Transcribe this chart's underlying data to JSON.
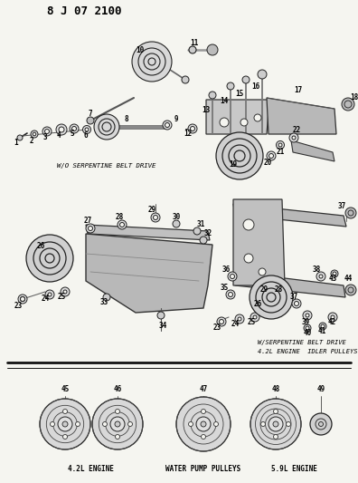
{
  "title": "8 J 07 2100",
  "bg_color": "#f5f5f0",
  "label_wo_serpentine": "W/O SERPENTINE BELT DRIVE",
  "label_w_serpentine": "W/SERPENTINE BELT DRIVE",
  "label_w_serpentine2": "4.2L ENGINE  IDLER PULLEYS",
  "label_42l": "4.2L ENGINE",
  "label_water_pump": "WATER PUMP PULLEYS",
  "label_59l": "5.9L ENGINE",
  "fig_w": 3.96,
  "fig_h": 5.33,
  "dpi": 100
}
